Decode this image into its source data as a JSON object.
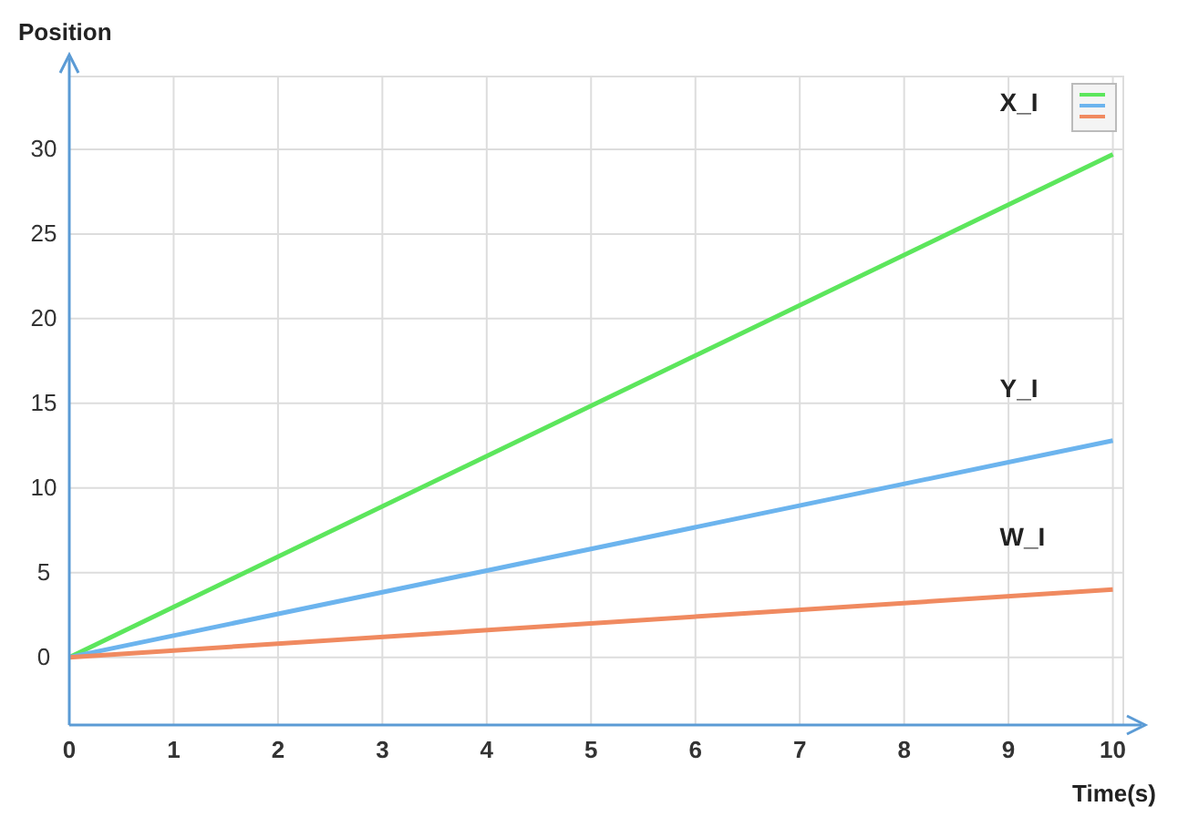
{
  "chart_data": {
    "type": "line",
    "xlabel": "Time(s)",
    "ylabel": "Position",
    "x": [
      0,
      10
    ],
    "series": [
      {
        "name": "X_I",
        "color": "#5ce65c",
        "values": [
          0,
          29.7
        ]
      },
      {
        "name": "Y_I",
        "color": "#6cb4ee",
        "values": [
          0,
          12.8
        ]
      },
      {
        "name": "W_I",
        "color": "#f08a60",
        "values": [
          0,
          4.0
        ]
      }
    ],
    "xlim": [
      0,
      10.1
    ],
    "ylim": [
      -4,
      34.3
    ],
    "xticks": [
      0,
      1,
      2,
      3,
      4,
      5,
      6,
      7,
      8,
      9,
      10
    ],
    "yticks": [
      0,
      5,
      10,
      15,
      20,
      25,
      30
    ],
    "grid": true,
    "legend": "top right",
    "marker": "none",
    "line_style": "solid"
  }
}
